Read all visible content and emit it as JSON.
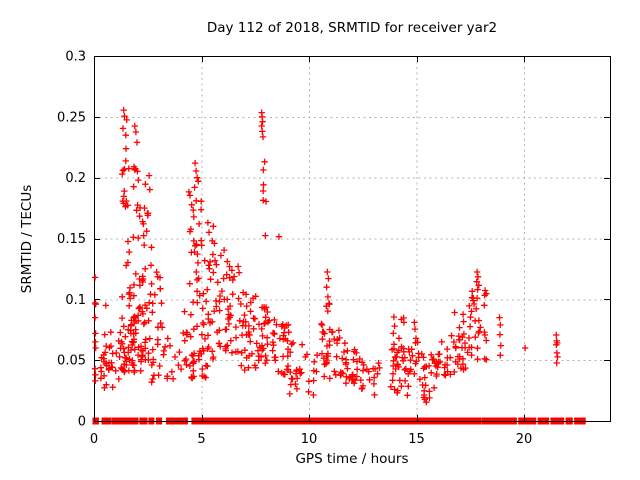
{
  "figure": {
    "background": "#ffffff"
  },
  "chart_data": {
    "type": "scatter",
    "title": "Day 112 of 2018, SRMTID for receiver yar2",
    "xlabel": "GPS time / hours",
    "ylabel": "SRMTID / TECUs",
    "xlim": [
      0,
      24
    ],
    "ylim": [
      0,
      0.3
    ],
    "xticks": {
      "values": [
        0,
        5,
        10,
        15,
        20
      ],
      "labels": [
        "0",
        "5",
        "10",
        "15",
        "20"
      ]
    },
    "yticks": {
      "values": [
        0,
        0.05,
        0.1,
        0.15,
        0.2,
        0.25,
        0.3
      ],
      "labels": [
        "0",
        "0.05",
        "0.1",
        "0.15",
        "0.2",
        "0.25",
        "0.3"
      ]
    },
    "grid": true,
    "legend": "none",
    "marker": "plus",
    "colors": {
      "marker": "#ff0000",
      "grid": "#b3b3b3",
      "axis": "#000000",
      "text": "#000000"
    },
    "seed": 7,
    "points": [
      [
        0.05,
        0.118
      ],
      [
        0.06,
        0.097
      ],
      [
        0.08,
        0.096
      ],
      [
        0.05,
        0.085
      ],
      [
        0.07,
        0.072
      ],
      [
        0.06,
        0.065
      ],
      [
        0.08,
        0.06
      ],
      [
        0.05,
        0.043
      ],
      [
        0.07,
        0.038
      ],
      [
        0.06,
        0.033
      ],
      [
        0.55,
        0.095
      ],
      [
        0.5,
        0.071
      ],
      [
        0.78,
        0.073
      ],
      [
        1.38,
        0.2555
      ],
      [
        1.42,
        0.2505
      ],
      [
        1.52,
        0.2475
      ],
      [
        1.35,
        0.2405
      ],
      [
        1.9,
        0.2425
      ],
      [
        1.95,
        0.2375
      ],
      [
        2.0,
        0.229
      ],
      [
        2.35,
        0.175
      ],
      [
        2.3,
        0.162
      ],
      [
        2.5,
        0.169
      ],
      [
        2.45,
        0.156
      ],
      [
        4.7,
        0.212
      ],
      [
        4.75,
        0.2055
      ],
      [
        4.8,
        0.2
      ],
      [
        4.85,
        0.197
      ],
      [
        4.68,
        0.192
      ],
      [
        5.3,
        0.163
      ],
      [
        5.35,
        0.155
      ],
      [
        5.55,
        0.16
      ],
      [
        5.5,
        0.148
      ],
      [
        5.6,
        0.146
      ],
      [
        5.9,
        0.136
      ],
      [
        6.05,
        0.1405
      ],
      [
        6.2,
        0.131
      ],
      [
        6.3,
        0.127
      ],
      [
        6.7,
        0.127
      ],
      [
        6.75,
        0.122
      ],
      [
        7.8,
        0.2535
      ],
      [
        7.82,
        0.25
      ],
      [
        7.84,
        0.246
      ],
      [
        7.8,
        0.2425
      ],
      [
        7.83,
        0.238
      ],
      [
        7.86,
        0.2335
      ],
      [
        8.6,
        0.1515
      ],
      [
        10.85,
        0.1225
      ],
      [
        10.9,
        0.117
      ],
      [
        10.82,
        0.11
      ],
      [
        10.88,
        0.102
      ],
      [
        10.95,
        0.096
      ],
      [
        12.2,
        0.056
      ],
      [
        13.95,
        0.0855
      ],
      [
        13.98,
        0.078
      ],
      [
        13.92,
        0.072
      ],
      [
        14.9,
        0.081
      ],
      [
        14.93,
        0.0755
      ],
      [
        17.82,
        0.1225
      ],
      [
        17.86,
        0.1185
      ],
      [
        17.8,
        0.1145
      ],
      [
        17.9,
        0.1115
      ],
      [
        17.84,
        0.108
      ],
      [
        18.86,
        0.085
      ],
      [
        18.9,
        0.079
      ],
      [
        18.88,
        0.071
      ],
      [
        18.92,
        0.062
      ],
      [
        18.9,
        0.054
      ],
      [
        20.05,
        0.06
      ],
      [
        21.5,
        0.0707
      ],
      [
        21.52,
        0.0658
      ],
      [
        21.55,
        0.0642
      ],
      [
        21.5,
        0.0626
      ],
      [
        21.53,
        0.056
      ],
      [
        21.56,
        0.0527
      ],
      [
        21.52,
        0.0477
      ]
    ],
    "clusters": [
      {
        "x": [
          1.3,
          1.62
        ],
        "y": [
          0.15,
          0.235
        ],
        "n": 14,
        "bias": 1
      },
      {
        "x": [
          1.8,
          2.15
        ],
        "y": [
          0.15,
          0.23
        ],
        "n": 12,
        "bias": 1.2
      },
      {
        "x": [
          2.18,
          2.6
        ],
        "y": [
          0.15,
          0.205
        ],
        "n": 7,
        "bias": 1
      },
      {
        "x": [
          4.4,
          5.0
        ],
        "y": [
          0.148,
          0.196
        ],
        "n": 12,
        "bias": 1
      },
      {
        "x": [
          7.82,
          8.05
        ],
        "y": [
          0.15,
          0.225
        ],
        "n": 7,
        "bias": 1
      },
      {
        "x": [
          0.3,
          0.92
        ],
        "y": [
          0.024,
          0.062
        ],
        "n": 24,
        "bias": 1
      },
      {
        "x": [
          1.0,
          1.34
        ],
        "y": [
          0.03,
          0.078
        ],
        "n": 10,
        "bias": 1
      },
      {
        "x": [
          1.3,
          1.8
        ],
        "y": [
          0.04,
          0.149
        ],
        "n": 40,
        "bias": 1.5
      },
      {
        "x": [
          1.8,
          2.3
        ],
        "y": [
          0.04,
          0.149
        ],
        "n": 44,
        "bias": 1.5
      },
      {
        "x": [
          2.3,
          2.72
        ],
        "y": [
          0.05,
          0.145
        ],
        "n": 20,
        "bias": 1.3
      },
      {
        "x": [
          2.6,
          3.3
        ],
        "y": [
          0.028,
          0.078
        ],
        "n": 16,
        "bias": 1
      },
      {
        "x": [
          2.72,
          3.2
        ],
        "y": [
          0.08,
          0.124
        ],
        "n": 9,
        "bias": 1
      },
      {
        "x": [
          3.3,
          4.0
        ],
        "y": [
          0.034,
          0.068
        ],
        "n": 10,
        "bias": 1
      },
      {
        "x": [
          4.0,
          4.42
        ],
        "y": [
          0.04,
          0.09
        ],
        "n": 10,
        "bias": 1
      },
      {
        "x": [
          4.42,
          5.3
        ],
        "y": [
          0.035,
          0.149
        ],
        "n": 55,
        "bias": 1.4
      },
      {
        "x": [
          5.3,
          6.0
        ],
        "y": [
          0.048,
          0.138
        ],
        "n": 30,
        "bias": 1.3
      },
      {
        "x": [
          6.0,
          6.7
        ],
        "y": [
          0.055,
          0.125
        ],
        "n": 28,
        "bias": 1.2
      },
      {
        "x": [
          6.7,
          7.6
        ],
        "y": [
          0.04,
          0.108
        ],
        "n": 36,
        "bias": 1.2
      },
      {
        "x": [
          7.6,
          8.4
        ],
        "y": [
          0.045,
          0.098
        ],
        "n": 34,
        "bias": 1.1
      },
      {
        "x": [
          8.4,
          9.1
        ],
        "y": [
          0.038,
          0.08
        ],
        "n": 26,
        "bias": 1
      },
      {
        "x": [
          9.1,
          9.7
        ],
        "y": [
          0.02,
          0.065
        ],
        "n": 18,
        "bias": 1
      },
      {
        "x": [
          9.8,
          10.4
        ],
        "y": [
          0.02,
          0.055
        ],
        "n": 10,
        "bias": 1
      },
      {
        "x": [
          10.78,
          11.0
        ],
        "y": [
          0.045,
          0.098
        ],
        "n": 8,
        "bias": 1
      },
      {
        "x": [
          10.55,
          11.5
        ],
        "y": [
          0.035,
          0.08
        ],
        "n": 30,
        "bias": 1.1
      },
      {
        "x": [
          11.5,
          12.1
        ],
        "y": [
          0.025,
          0.065
        ],
        "n": 20,
        "bias": 1
      },
      {
        "x": [
          12.1,
          12.75
        ],
        "y": [
          0.025,
          0.06
        ],
        "n": 16,
        "bias": 1
      },
      {
        "x": [
          12.75,
          13.3
        ],
        "y": [
          0.018,
          0.05
        ],
        "n": 10,
        "bias": 1
      },
      {
        "x": [
          13.9,
          14.45
        ],
        "y": [
          0.045,
          0.086
        ],
        "n": 12,
        "bias": 1
      },
      {
        "x": [
          13.8,
          14.7
        ],
        "y": [
          0.02,
          0.06
        ],
        "n": 28,
        "bias": 1
      },
      {
        "x": [
          14.7,
          15.25
        ],
        "y": [
          0.03,
          0.068
        ],
        "n": 14,
        "bias": 1
      },
      {
        "x": [
          15.25,
          16.0
        ],
        "y": [
          0.015,
          0.055
        ],
        "n": 26,
        "bias": 1
      },
      {
        "x": [
          16.0,
          16.6
        ],
        "y": [
          0.03,
          0.065
        ],
        "n": 16,
        "bias": 1
      },
      {
        "x": [
          16.6,
          17.4
        ],
        "y": [
          0.04,
          0.092
        ],
        "n": 28,
        "bias": 1.1
      },
      {
        "x": [
          17.4,
          18.3
        ],
        "y": [
          0.05,
          0.11
        ],
        "n": 32,
        "bias": 1.1
      }
    ],
    "zero_band_segments": [
      [
        0.0,
        0.16
      ],
      [
        0.42,
        0.75
      ],
      [
        0.9,
        1.1
      ],
      [
        1.15,
        1.5
      ],
      [
        1.62,
        2.0
      ],
      [
        2.18,
        2.42
      ],
      [
        2.6,
        2.72
      ],
      [
        2.95,
        3.1
      ],
      [
        3.42,
        3.72
      ],
      [
        3.85,
        4.3
      ],
      [
        4.6,
        4.78
      ],
      [
        4.9,
        5.12
      ],
      [
        5.2,
        5.55
      ],
      [
        5.62,
        6.1
      ],
      [
        6.2,
        6.85
      ],
      [
        6.95,
        7.8
      ],
      [
        7.9,
        8.35
      ],
      [
        8.45,
        9.1
      ],
      [
        9.2,
        9.9
      ],
      [
        10.0,
        10.55
      ],
      [
        10.65,
        11.0
      ],
      [
        11.1,
        12.0
      ],
      [
        12.1,
        12.6
      ],
      [
        12.7,
        14.5
      ],
      [
        14.62,
        15.1
      ],
      [
        15.2,
        16.2
      ],
      [
        16.3,
        17.3
      ],
      [
        17.4,
        17.95
      ],
      [
        18.1,
        18.6
      ],
      [
        18.7,
        19.6
      ],
      [
        19.8,
        20.5
      ],
      [
        20.7,
        21.1
      ],
      [
        21.3,
        21.8
      ],
      [
        22.0,
        22.2
      ],
      [
        22.4,
        22.8
      ]
    ]
  }
}
